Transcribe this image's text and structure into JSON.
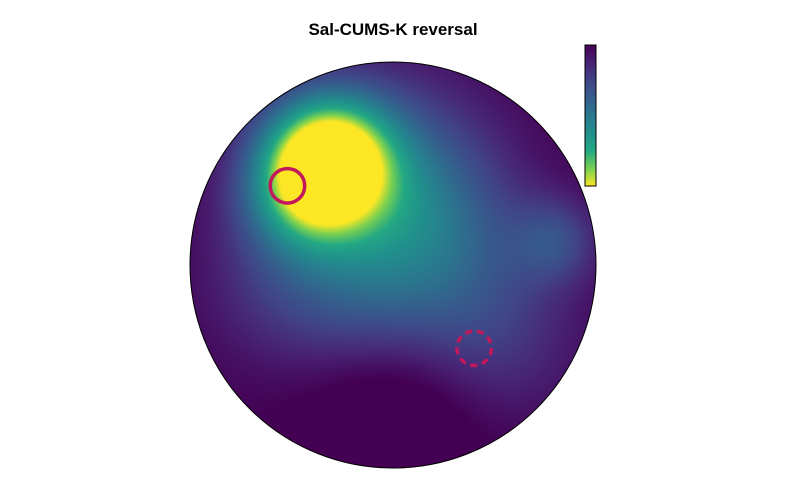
{
  "chart_data": {
    "type": "heatmap",
    "title": "Sal-CUMS-K reversal",
    "colormap": "viridis",
    "colorbar": {
      "orientation": "vertical",
      "reversed": true,
      "tick_labels": []
    },
    "arena": {
      "shape": "circle",
      "background_color": "#440154"
    },
    "hotspots": [
      {
        "x": -0.32,
        "y": 0.53,
        "intensity": 1.0,
        "spread": 0.22
      },
      {
        "x": -0.45,
        "y": 0.35,
        "intensity": 0.45,
        "spread": 0.22
      },
      {
        "x": 0.0,
        "y": 0.45,
        "intensity": 0.32,
        "spread": 0.34
      },
      {
        "x": 0.2,
        "y": 0.12,
        "intensity": 0.28,
        "spread": 0.32
      },
      {
        "x": 0.8,
        "y": 0.12,
        "intensity": 0.25,
        "spread": 0.15
      },
      {
        "x": -0.2,
        "y": -0.12,
        "intensity": 0.22,
        "spread": 0.3
      },
      {
        "x": 0.5,
        "y": -0.35,
        "intensity": 0.18,
        "spread": 0.3
      },
      {
        "x": -0.6,
        "y": -0.1,
        "intensity": 0.12,
        "spread": 0.28
      },
      {
        "x": 0.0,
        "y": -0.75,
        "intensity": -0.15,
        "spread": 0.3
      }
    ],
    "platforms": [
      {
        "name": "target-platform",
        "x": -0.52,
        "y": 0.39,
        "radius": 0.085,
        "style": "solid",
        "color": "#c2185b"
      },
      {
        "name": "former-platform",
        "x": 0.4,
        "y": -0.41,
        "radius": 0.085,
        "style": "dashed",
        "color": "#c2185b"
      }
    ]
  }
}
